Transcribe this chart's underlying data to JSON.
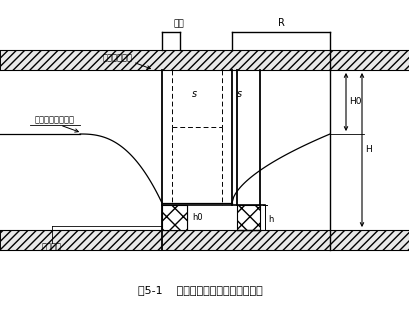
{
  "title": "图5-1    无压非完整井涌水量计算简图",
  "label_original_water": "原地下水位线",
  "label_lowered_water": "降低后地下水位线",
  "label_impermeable": "不透水层",
  "label_pit": "基坑",
  "label_R": "R",
  "label_s_left": "s",
  "label_s_right": "s",
  "label_h0": "h0",
  "label_h": "h",
  "label_H0": "H0",
  "label_H": "H",
  "bg_color": "#ffffff",
  "line_color": "#000000"
}
